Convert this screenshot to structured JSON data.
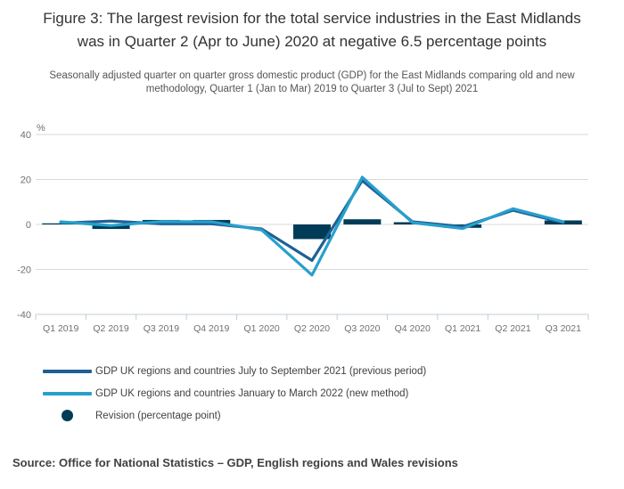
{
  "chart_data": {
    "type": "line+bar",
    "title": "Figure 3: The largest revision for the total service industries in the East Midlands was in Quarter 2 (Apr to June) 2020 at negative 6.5 percentage points",
    "subtitle": "Seasonally adjusted quarter on quarter gross domestic product (GDP) for the East Midlands comparing old and new methodology, Quarter 1 (Jan to Mar) 2019 to Quarter 3 (Jul to Sept) 2021",
    "source": "Source: Office for National Statistics – GDP, English regions and Wales revisions",
    "unit_label": "%",
    "categories": [
      "Q1 2019",
      "Q2 2019",
      "Q3 2019",
      "Q4 2019",
      "Q1 2020",
      "Q2 2020",
      "Q3 2020",
      "Q4 2020",
      "Q1 2021",
      "Q2 2021",
      "Q3 2021"
    ],
    "series": [
      {
        "name": "GDP UK regions and countries July to September 2021 (previous period)",
        "type": "line",
        "color": "#206095",
        "values": [
          0.6,
          1.5,
          0.3,
          0.3,
          -2.0,
          -16.0,
          19.5,
          1.2,
          -1.0,
          6.3,
          0.8
        ]
      },
      {
        "name": "GDP UK regions and countries January to March 2022 (new method)",
        "type": "line",
        "color": "#27a0cc",
        "values": [
          1.2,
          -0.5,
          1.3,
          1.2,
          -2.5,
          -22.5,
          21.0,
          0.8,
          -1.8,
          7.0,
          1.2
        ]
      },
      {
        "name": "Revision (percentage point)",
        "type": "bar",
        "color": "#003c57",
        "values": [
          0.5,
          -2.0,
          2.0,
          2.0,
          0.0,
          -6.5,
          2.3,
          1.0,
          -1.5,
          0.0,
          1.8
        ]
      }
    ],
    "ylim": [
      -40,
      40
    ],
    "yticks": [
      40,
      20,
      0,
      -20,
      -40
    ],
    "grid": true,
    "legend_position": "bottom-left"
  },
  "colors": {
    "background": "#ffffff",
    "grid": "#d9d9d9",
    "axis": "#c0ccd4",
    "tick_label": "#707071",
    "title_text": "#333333",
    "subtitle_text": "#555555",
    "legend_text": "#414042",
    "source_text": "#414042",
    "line_previous": "#206095",
    "line_new": "#27a0cc",
    "revision_bar": "#003c57"
  }
}
